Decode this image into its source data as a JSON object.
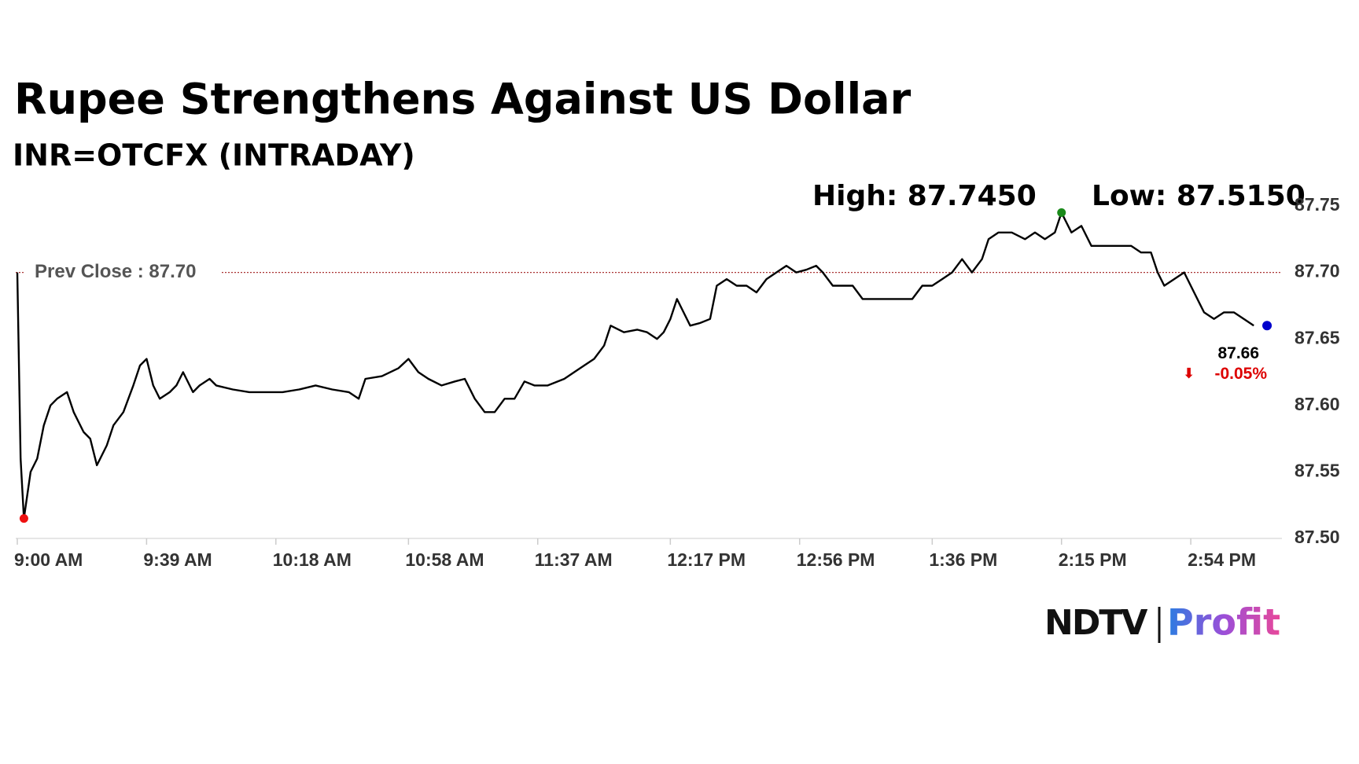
{
  "chart_data": {
    "type": "line",
    "title": "Rupee Strengthens Against US Dollar",
    "subtitle": "INR=OTCFX (INTRADAY)",
    "high_label": "High: 87.7450",
    "low_label": "Low: 87.5150",
    "prev_close": {
      "value": 87.7,
      "label": "Prev Close : 87.70"
    },
    "last": {
      "value": 87.66,
      "label": "87.66",
      "x": "3:17 PM",
      "color": "#0000cc"
    },
    "change": {
      "value": -0.05,
      "label": "-0.05%",
      "color": "#dd0000"
    },
    "color": "#000000",
    "high_color": "#1a8a1a",
    "low_color": "#ee1111",
    "x": [
      "9:00 AM",
      "9:01 AM",
      "9:02 AM",
      "9:04 AM",
      "9:06 AM",
      "9:08 AM",
      "9:10 AM",
      "9:12 AM",
      "9:15 AM",
      "9:17 AM",
      "9:20 AM",
      "9:22 AM",
      "9:24 AM",
      "9:27 AM",
      "9:29 AM",
      "9:32 AM",
      "9:35 AM",
      "9:37 AM",
      "9:39 AM",
      "9:41 AM",
      "9:43 AM",
      "9:46 AM",
      "9:48 AM",
      "9:50 AM",
      "9:53 AM",
      "9:55 AM",
      "9:58 AM",
      "10:00 AM",
      "10:05 AM",
      "10:10 AM",
      "10:15 AM",
      "10:20 AM",
      "10:25 AM",
      "10:30 AM",
      "10:35 AM",
      "10:40 AM",
      "10:43 AM",
      "10:45 AM",
      "10:50 AM",
      "10:55 AM",
      "10:58 AM",
      "11:01 AM",
      "11:04 AM",
      "11:08 AM",
      "11:12 AM",
      "11:15 AM",
      "11:18 AM",
      "11:21 AM",
      "11:24 AM",
      "11:27 AM",
      "11:30 AM",
      "11:33 AM",
      "11:36 AM",
      "11:40 AM",
      "11:45 AM",
      "11:48 AM",
      "11:51 AM",
      "11:54 AM",
      "11:57 AM",
      "11:59 AM",
      "12:03 PM",
      "12:07 PM",
      "12:10 PM",
      "12:13 PM",
      "12:15 PM",
      "12:17 PM",
      "12:19 PM",
      "12:21 PM",
      "12:23 PM",
      "12:26 PM",
      "12:29 PM",
      "12:31 PM",
      "12:34 PM",
      "12:37 PM",
      "12:40 PM",
      "12:43 PM",
      "12:46 PM",
      "12:49 PM",
      "12:52 PM",
      "12:55 PM",
      "12:58 PM",
      "1:01 PM",
      "1:03 PM",
      "1:06 PM",
      "1:09 PM",
      "1:12 PM",
      "1:15 PM",
      "1:18 PM",
      "1:22 PM",
      "1:26 PM",
      "1:30 PM",
      "1:33 PM",
      "1:36 PM",
      "1:39 PM",
      "1:42 PM",
      "1:45 PM",
      "1:48 PM",
      "1:51 PM",
      "1:53 PM",
      "1:56 PM",
      "2:00 PM",
      "2:04 PM",
      "2:07 PM",
      "2:10 PM",
      "2:13 PM",
      "2:15 PM",
      "2:18 PM",
      "2:21 PM",
      "2:24 PM",
      "2:27 PM",
      "2:30 PM",
      "2:33 PM",
      "2:36 PM",
      "2:39 PM",
      "2:42 PM",
      "2:44 PM",
      "2:46 PM",
      "2:49 PM",
      "2:52 PM",
      "2:55 PM",
      "2:58 PM",
      "3:01 PM",
      "3:04 PM",
      "3:07 PM",
      "3:10 PM",
      "3:13 PM"
    ],
    "values": [
      87.7,
      87.56,
      87.515,
      87.55,
      87.56,
      87.585,
      87.6,
      87.605,
      87.61,
      87.595,
      87.58,
      87.575,
      87.555,
      87.57,
      87.585,
      87.595,
      87.615,
      87.63,
      87.635,
      87.615,
      87.605,
      87.61,
      87.615,
      87.625,
      87.61,
      87.615,
      87.62,
      87.615,
      87.612,
      87.61,
      87.61,
      87.61,
      87.612,
      87.615,
      87.612,
      87.61,
      87.605,
      87.62,
      87.622,
      87.628,
      87.635,
      87.625,
      87.62,
      87.615,
      87.618,
      87.62,
      87.605,
      87.595,
      87.595,
      87.605,
      87.605,
      87.618,
      87.615,
      87.615,
      87.62,
      87.625,
      87.63,
      87.635,
      87.645,
      87.66,
      87.655,
      87.657,
      87.655,
      87.65,
      87.655,
      87.665,
      87.68,
      87.67,
      87.66,
      87.662,
      87.665,
      87.69,
      87.695,
      87.69,
      87.69,
      87.685,
      87.695,
      87.7,
      87.705,
      87.7,
      87.702,
      87.705,
      87.7,
      87.69,
      87.69,
      87.69,
      87.68,
      87.68,
      87.68,
      87.68,
      87.68,
      87.69,
      87.69,
      87.695,
      87.7,
      87.71,
      87.7,
      87.71,
      87.725,
      87.73,
      87.73,
      87.725,
      87.73,
      87.725,
      87.73,
      87.745,
      87.73,
      87.735,
      87.72,
      87.72,
      87.72,
      87.72,
      87.72,
      87.715,
      87.715,
      87.7,
      87.69,
      87.695,
      87.7,
      87.685,
      87.67,
      87.665,
      87.67,
      87.67,
      87.665,
      87.66
    ],
    "xlim": [
      "9:00 AM",
      "3:17 PM"
    ],
    "xticks": [
      "9:00 AM",
      "9:39 AM",
      "10:18 AM",
      "10:58 AM",
      "11:37 AM",
      "12:17 PM",
      "12:56 PM",
      "1:36 PM",
      "2:15 PM",
      "2:54 PM"
    ],
    "ylim": [
      87.5,
      87.75
    ],
    "yticks": [
      {
        "value": 87.5,
        "label": "87.50"
      },
      87.55,
      {
        "value": 87.6,
        "label": "87.60"
      },
      87.65,
      {
        "value": 87.7,
        "label": "87.70"
      },
      87.75
    ],
    "brand": {
      "left": "NDTV",
      "right": "Profit"
    }
  }
}
